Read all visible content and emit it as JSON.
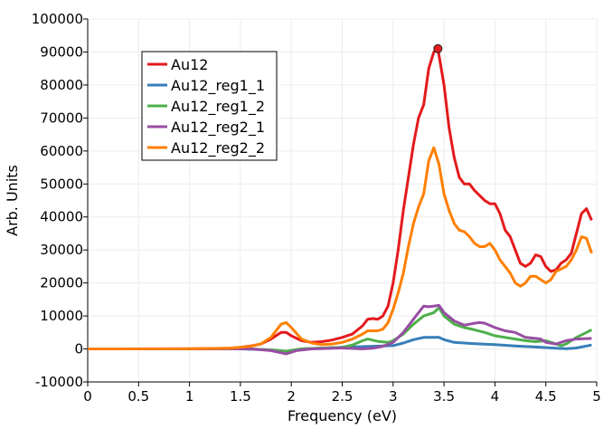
{
  "chart_data": {
    "type": "line",
    "title": "",
    "xlabel": "Frequency (eV)",
    "ylabel": "Arb. Units",
    "xlim": [
      0,
      5
    ],
    "ylim": [
      -10000,
      100000
    ],
    "xticks": [
      "0",
      "0.5",
      "1",
      "1.5",
      "2",
      "2.5",
      "3",
      "3.5",
      "4",
      "4.5",
      "5"
    ],
    "yticks": [
      "-10000",
      "0",
      "10000",
      "20000",
      "30000",
      "40000",
      "50000",
      "60000",
      "70000",
      "80000",
      "90000",
      "100000"
    ],
    "grid": true,
    "legend_position": "top-left",
    "marker": {
      "series": "Au12",
      "x": 3.44,
      "y": 91000
    },
    "series": [
      {
        "name": "Au12",
        "color": "#e41a1c",
        "points": [
          [
            0,
            0
          ],
          [
            1.0,
            50
          ],
          [
            1.4,
            200
          ],
          [
            1.5,
            500
          ],
          [
            1.6,
            900
          ],
          [
            1.7,
            1500
          ],
          [
            1.8,
            3000
          ],
          [
            1.9,
            5000
          ],
          [
            1.95,
            5000
          ],
          [
            2.0,
            4000
          ],
          [
            2.1,
            2500
          ],
          [
            2.2,
            2000
          ],
          [
            2.3,
            2200
          ],
          [
            2.4,
            2700
          ],
          [
            2.5,
            3500
          ],
          [
            2.6,
            4500
          ],
          [
            2.7,
            7000
          ],
          [
            2.75,
            9000
          ],
          [
            2.8,
            9200
          ],
          [
            2.85,
            9000
          ],
          [
            2.9,
            10000
          ],
          [
            2.95,
            13000
          ],
          [
            3.0,
            20000
          ],
          [
            3.05,
            30000
          ],
          [
            3.1,
            42000
          ],
          [
            3.15,
            52000
          ],
          [
            3.2,
            62000
          ],
          [
            3.25,
            70000
          ],
          [
            3.3,
            74000
          ],
          [
            3.35,
            85000
          ],
          [
            3.4,
            90000
          ],
          [
            3.44,
            91000
          ],
          [
            3.5,
            80000
          ],
          [
            3.55,
            67000
          ],
          [
            3.6,
            58000
          ],
          [
            3.65,
            52000
          ],
          [
            3.7,
            50000
          ],
          [
            3.75,
            50000
          ],
          [
            3.8,
            48000
          ],
          [
            3.9,
            45000
          ],
          [
            3.95,
            44000
          ],
          [
            4.0,
            44000
          ],
          [
            4.05,
            41000
          ],
          [
            4.1,
            36000
          ],
          [
            4.15,
            34000
          ],
          [
            4.2,
            30000
          ],
          [
            4.25,
            26000
          ],
          [
            4.3,
            25000
          ],
          [
            4.35,
            26000
          ],
          [
            4.4,
            28500
          ],
          [
            4.45,
            28000
          ],
          [
            4.5,
            25000
          ],
          [
            4.55,
            23500
          ],
          [
            4.6,
            24000
          ],
          [
            4.65,
            26000
          ],
          [
            4.7,
            27000
          ],
          [
            4.75,
            29000
          ],
          [
            4.8,
            35000
          ],
          [
            4.85,
            41000
          ],
          [
            4.9,
            42500
          ],
          [
            4.95,
            39000
          ]
        ]
      },
      {
        "name": "Au12_reg1_1",
        "color": "#377eb8",
        "points": [
          [
            0,
            0
          ],
          [
            1.5,
            0
          ],
          [
            1.8,
            -300
          ],
          [
            1.95,
            -700
          ],
          [
            2.1,
            0
          ],
          [
            2.5,
            500
          ],
          [
            3.0,
            1000
          ],
          [
            3.1,
            1800
          ],
          [
            3.2,
            2800
          ],
          [
            3.3,
            3500
          ],
          [
            3.45,
            3500
          ],
          [
            3.5,
            2800
          ],
          [
            3.6,
            2000
          ],
          [
            3.8,
            1600
          ],
          [
            4.0,
            1300
          ],
          [
            4.2,
            900
          ],
          [
            4.4,
            600
          ],
          [
            4.6,
            200
          ],
          [
            4.7,
            100
          ],
          [
            4.8,
            300
          ],
          [
            4.95,
            1200
          ]
        ]
      },
      {
        "name": "Au12_reg1_2",
        "color": "#4daf4a",
        "points": [
          [
            0,
            0
          ],
          [
            1.6,
            0
          ],
          [
            1.8,
            -300
          ],
          [
            1.95,
            -700
          ],
          [
            2.1,
            0
          ],
          [
            2.5,
            500
          ],
          [
            2.6,
            1200
          ],
          [
            2.7,
            2500
          ],
          [
            2.75,
            3000
          ],
          [
            2.85,
            2300
          ],
          [
            2.95,
            2000
          ],
          [
            3.0,
            2500
          ],
          [
            3.1,
            4500
          ],
          [
            3.2,
            7500
          ],
          [
            3.3,
            10000
          ],
          [
            3.35,
            10500
          ],
          [
            3.4,
            11000
          ],
          [
            3.45,
            12500
          ],
          [
            3.5,
            10000
          ],
          [
            3.6,
            7500
          ],
          [
            3.7,
            6500
          ],
          [
            3.8,
            5800
          ],
          [
            3.9,
            5000
          ],
          [
            4.0,
            4000
          ],
          [
            4.1,
            3500
          ],
          [
            4.2,
            3000
          ],
          [
            4.3,
            2500
          ],
          [
            4.4,
            2200
          ],
          [
            4.5,
            2500
          ],
          [
            4.6,
            1500
          ],
          [
            4.65,
            1000
          ],
          [
            4.7,
            1500
          ],
          [
            4.8,
            3500
          ],
          [
            4.9,
            5000
          ],
          [
            4.95,
            5800
          ]
        ]
      },
      {
        "name": "Au12_reg2_1",
        "color": "#984ea3",
        "points": [
          [
            0,
            0
          ],
          [
            1.6,
            0
          ],
          [
            1.8,
            -500
          ],
          [
            1.95,
            -1500
          ],
          [
            2.05,
            -500
          ],
          [
            2.2,
            0
          ],
          [
            2.5,
            300
          ],
          [
            2.7,
            0
          ],
          [
            2.8,
            200
          ],
          [
            2.9,
            800
          ],
          [
            3.0,
            2000
          ],
          [
            3.1,
            5000
          ],
          [
            3.2,
            9000
          ],
          [
            3.3,
            13000
          ],
          [
            3.35,
            12800
          ],
          [
            3.4,
            13000
          ],
          [
            3.45,
            13200
          ],
          [
            3.5,
            11000
          ],
          [
            3.6,
            8500
          ],
          [
            3.7,
            7200
          ],
          [
            3.8,
            7800
          ],
          [
            3.85,
            8000
          ],
          [
            3.9,
            7800
          ],
          [
            4.0,
            6500
          ],
          [
            4.1,
            5500
          ],
          [
            4.2,
            5000
          ],
          [
            4.3,
            3500
          ],
          [
            4.4,
            3200
          ],
          [
            4.45,
            3000
          ],
          [
            4.5,
            2000
          ],
          [
            4.6,
            1500
          ],
          [
            4.7,
            2500
          ],
          [
            4.8,
            3000
          ],
          [
            4.95,
            3200
          ]
        ]
      },
      {
        "name": "Au12_reg2_2",
        "color": "#ff7f00",
        "points": [
          [
            0,
            0
          ],
          [
            1.0,
            50
          ],
          [
            1.4,
            200
          ],
          [
            1.6,
            800
          ],
          [
            1.7,
            1500
          ],
          [
            1.8,
            3500
          ],
          [
            1.9,
            7500
          ],
          [
            1.95,
            8000
          ],
          [
            2.0,
            6500
          ],
          [
            2.1,
            3000
          ],
          [
            2.2,
            1800
          ],
          [
            2.3,
            1300
          ],
          [
            2.4,
            1500
          ],
          [
            2.5,
            2000
          ],
          [
            2.6,
            3000
          ],
          [
            2.7,
            4500
          ],
          [
            2.75,
            5500
          ],
          [
            2.85,
            5500
          ],
          [
            2.9,
            6000
          ],
          [
            2.95,
            8000
          ],
          [
            3.0,
            12000
          ],
          [
            3.05,
            17000
          ],
          [
            3.1,
            23000
          ],
          [
            3.15,
            31000
          ],
          [
            3.2,
            38000
          ],
          [
            3.25,
            43000
          ],
          [
            3.3,
            47000
          ],
          [
            3.35,
            57000
          ],
          [
            3.4,
            61000
          ],
          [
            3.45,
            56000
          ],
          [
            3.5,
            47000
          ],
          [
            3.55,
            42000
          ],
          [
            3.6,
            38000
          ],
          [
            3.65,
            36000
          ],
          [
            3.7,
            35500
          ],
          [
            3.75,
            34000
          ],
          [
            3.8,
            32000
          ],
          [
            3.85,
            31000
          ],
          [
            3.9,
            31000
          ],
          [
            3.95,
            32000
          ],
          [
            4.0,
            30000
          ],
          [
            4.05,
            27000
          ],
          [
            4.1,
            25000
          ],
          [
            4.15,
            23000
          ],
          [
            4.2,
            20000
          ],
          [
            4.25,
            19000
          ],
          [
            4.3,
            20000
          ],
          [
            4.35,
            22000
          ],
          [
            4.4,
            22000
          ],
          [
            4.45,
            21000
          ],
          [
            4.5,
            20000
          ],
          [
            4.55,
            21000
          ],
          [
            4.6,
            23500
          ],
          [
            4.7,
            25000
          ],
          [
            4.75,
            27000
          ],
          [
            4.8,
            30000
          ],
          [
            4.85,
            34000
          ],
          [
            4.9,
            33500
          ],
          [
            4.95,
            29000
          ]
        ]
      }
    ]
  }
}
